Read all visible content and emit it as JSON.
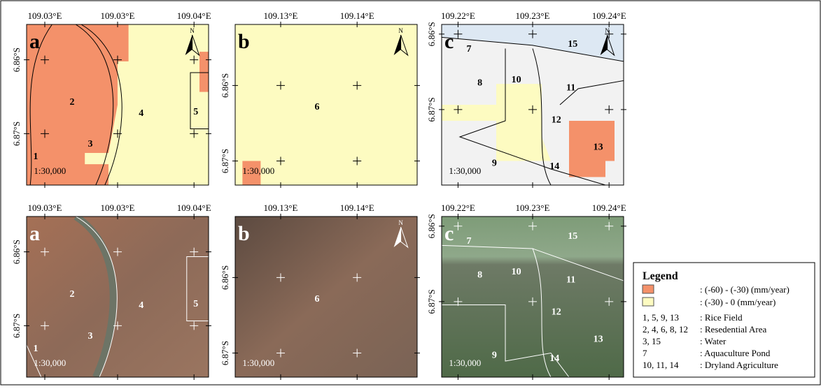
{
  "panels": [
    {
      "letter": "a",
      "lon_labels": [
        "109.03°E",
        "109.03°E",
        "109.04°E"
      ],
      "lat_labels": [
        "6.86°S",
        "6.87°S"
      ],
      "north": "N",
      "scale": "1:30,000",
      "zones": [
        "1",
        "2",
        "3",
        "4",
        "5"
      ]
    },
    {
      "letter": "b",
      "lon_labels": [
        "109.13°E",
        "109.14°E"
      ],
      "lat_labels": [
        "6.86°S",
        "6.87°S"
      ],
      "north": "N",
      "scale": "1:30,000",
      "zones": [
        "6"
      ]
    },
    {
      "letter": "c",
      "lon_labels": [
        "109.22°E",
        "109.23°E",
        "109.24°E"
      ],
      "lat_labels": [
        "6.86°S",
        "6.87°S"
      ],
      "north": "N",
      "scale": "1:30,000",
      "zones": [
        "7",
        "8",
        "9",
        "10",
        "11",
        "12",
        "13",
        "14",
        "15"
      ]
    },
    {
      "letter": "a",
      "lon_labels": [
        "109.03°E",
        "109.03°E",
        "109.04°E"
      ],
      "lat_labels": [
        "6.86°S",
        "6.87°S"
      ],
      "scale": "1:30,000",
      "zones": [
        "1",
        "2",
        "3",
        "4",
        "5"
      ]
    },
    {
      "letter": "b",
      "lon_labels": [
        "109.13°E",
        "109.14°E"
      ],
      "lat_labels": [
        "6.86°S",
        "6.87°S"
      ],
      "north": "N",
      "scale": "1:30,000",
      "zones": [
        "6"
      ]
    },
    {
      "letter": "c",
      "lon_labels": [
        "109.22°E",
        "109.23°E",
        "109.24°E"
      ],
      "lat_labels": [
        "6.86°S",
        "6.87°S"
      ],
      "scale": "1:30,000",
      "zones": [
        "7",
        "8",
        "9",
        "10",
        "11",
        "12",
        "13",
        "14",
        "15"
      ]
    }
  ],
  "legend": {
    "title": "Legend",
    "items": [
      {
        "color": "#f4916a",
        "label": ": (-60) - (-30) (mm/year)"
      },
      {
        "color": "#fdfbc1",
        "label": ": (-30) - 0 (mm/year)"
      }
    ],
    "classes": [
      {
        "codes": "1, 5, 9, 13",
        "label": ": Rice Field"
      },
      {
        "codes": "2, 4, 6, 8, 12",
        "label": ": Resedential Area"
      },
      {
        "codes": "3, 15",
        "label": ": Water"
      },
      {
        "codes": "7",
        "label": ": Aquaculture Pond"
      },
      {
        "codes": "10, 11, 14",
        "label": ": Dryland Agriculture"
      }
    ]
  }
}
